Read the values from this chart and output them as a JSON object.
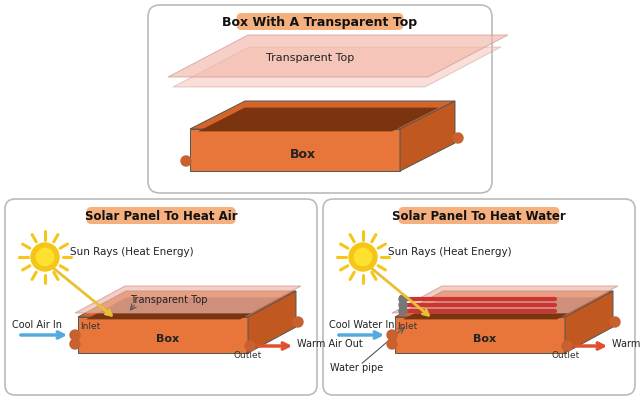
{
  "bg_color": "#ffffff",
  "panel_border": "#cccccc",
  "title_box_color": "#f5b080",
  "box_top_col": "#d4652a",
  "box_front_col": "#e8763a",
  "box_side_col": "#c05820",
  "box_inner_col": "#7a3510",
  "transparent_color": "#f2b8a8",
  "transparent_alpha": 0.65,
  "sun_color": "#f5c518",
  "sun_inner": "#fde030",
  "arrow_blue": "#55aadd",
  "arrow_red": "#e05030",
  "arrow_yellow": "#e8c030",
  "pipe_color": "#cc3333",
  "pipe_gray": "#888888",
  "label_color": "#222222",
  "nub_color": "#c86030",
  "top_panel_title": "Box With A Transparent Top",
  "left_panel_title": "Solar Panel To Heat Air",
  "right_panel_title": "Solar Panel To Heat Water",
  "transparent_top_label": "Transparent Top",
  "box_label": "Box",
  "sun_label": "Sun Rays (Heat Energy)",
  "cool_air_label": "Cool Air In",
  "warm_air_label": "Warm Air Out",
  "inlet_label": "Inlet",
  "outlet_label": "Outlet",
  "transparent_top_label2": "Transparent Top",
  "cool_water_label": "Cool Water In",
  "warm_water_label": "Warm Water Out",
  "inlet_label2": "Inlet",
  "outlet_label2": "Outlet",
  "water_pipe_label": "Water pipe",
  "box_label2": "Box",
  "box_label3": "Box"
}
